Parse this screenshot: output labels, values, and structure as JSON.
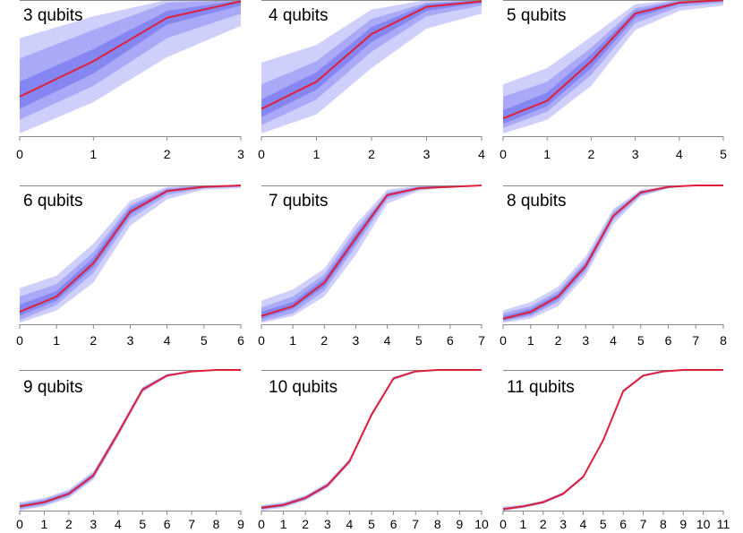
{
  "colors": {
    "band_outer": "#cfcffc",
    "band_mid": "#a9a9f7",
    "band_inner": "#8686f2",
    "median": "#dd1f3a",
    "axis": "#888888",
    "text": "#000000"
  },
  "chart_data": [
    {
      "type": "line",
      "title": "3 qubits",
      "xlabel": "",
      "ylabel": "",
      "x": [
        0,
        1,
        2,
        3
      ],
      "xlim": [
        0,
        3
      ],
      "ylim": [
        0,
        1
      ],
      "grid": false,
      "legend": "none",
      "series": [
        {
          "name": "median",
          "values": [
            0.29,
            0.55,
            0.87,
            0.99
          ]
        }
      ],
      "bands": [
        {
          "name": "outer",
          "low": [
            0.02,
            0.25,
            0.58,
            0.81
          ],
          "high": [
            0.72,
            0.88,
            1.0,
            1.0
          ]
        },
        {
          "name": "middle",
          "low": [
            0.12,
            0.37,
            0.72,
            0.9
          ],
          "high": [
            0.57,
            0.78,
            0.98,
            1.0
          ]
        },
        {
          "name": "inner",
          "low": [
            0.2,
            0.46,
            0.82,
            0.96
          ],
          "high": [
            0.4,
            0.64,
            0.92,
            1.0
          ]
        }
      ]
    },
    {
      "type": "line",
      "title": "4 qubits",
      "xlabel": "",
      "ylabel": "",
      "x": [
        0,
        1,
        2,
        3,
        4
      ],
      "xlim": [
        0,
        4
      ],
      "ylim": [
        0,
        1
      ],
      "grid": false,
      "legend": "none",
      "series": [
        {
          "name": "median",
          "values": [
            0.2,
            0.4,
            0.75,
            0.95,
            0.99
          ]
        }
      ],
      "bands": [
        {
          "name": "outer",
          "low": [
            0.02,
            0.16,
            0.5,
            0.79,
            0.9
          ],
          "high": [
            0.54,
            0.67,
            0.93,
            1.0,
            1.0
          ]
        },
        {
          "name": "middle",
          "low": [
            0.08,
            0.27,
            0.62,
            0.88,
            0.96
          ],
          "high": [
            0.38,
            0.55,
            0.86,
            0.98,
            1.0
          ]
        },
        {
          "name": "inner",
          "low": [
            0.14,
            0.34,
            0.69,
            0.92,
            0.98
          ],
          "high": [
            0.27,
            0.47,
            0.8,
            0.97,
            1.0
          ]
        }
      ]
    },
    {
      "type": "line",
      "title": "5 qubits",
      "xlabel": "",
      "ylabel": "",
      "x": [
        0,
        1,
        2,
        3,
        4,
        5
      ],
      "xlim": [
        0,
        5
      ],
      "ylim": [
        0,
        1
      ],
      "grid": false,
      "legend": "none",
      "series": [
        {
          "name": "median",
          "values": [
            0.13,
            0.26,
            0.55,
            0.9,
            0.98,
            1.0
          ]
        }
      ],
      "bands": [
        {
          "name": "outer",
          "low": [
            0.02,
            0.12,
            0.37,
            0.78,
            0.92,
            0.96
          ],
          "high": [
            0.38,
            0.5,
            0.73,
            0.97,
            1.0,
            1.0
          ]
        },
        {
          "name": "middle",
          "low": [
            0.06,
            0.18,
            0.45,
            0.83,
            0.95,
            0.98
          ],
          "high": [
            0.29,
            0.4,
            0.65,
            0.94,
            1.0,
            1.0
          ]
        },
        {
          "name": "inner",
          "low": [
            0.09,
            0.22,
            0.5,
            0.87,
            0.97,
            0.99
          ],
          "high": [
            0.19,
            0.32,
            0.6,
            0.92,
            0.99,
            1.0
          ]
        }
      ]
    },
    {
      "type": "line",
      "title": "6 qubits",
      "xlabel": "",
      "ylabel": "",
      "x": [
        0,
        1,
        2,
        3,
        4,
        5,
        6
      ],
      "xlim": [
        0,
        6
      ],
      "ylim": [
        0,
        1
      ],
      "grid": false,
      "legend": "none",
      "series": [
        {
          "name": "median",
          "values": [
            0.09,
            0.2,
            0.44,
            0.81,
            0.96,
            0.99,
            1.0
          ]
        }
      ],
      "bands": [
        {
          "name": "outer",
          "low": [
            0.01,
            0.1,
            0.3,
            0.71,
            0.9,
            0.97,
            0.98
          ],
          "high": [
            0.26,
            0.35,
            0.58,
            0.89,
            0.99,
            1.0,
            1.0
          ]
        },
        {
          "name": "middle",
          "low": [
            0.03,
            0.14,
            0.37,
            0.76,
            0.93,
            0.98,
            0.99
          ],
          "high": [
            0.2,
            0.29,
            0.52,
            0.86,
            0.98,
            1.0,
            1.0
          ]
        },
        {
          "name": "inner",
          "low": [
            0.06,
            0.17,
            0.41,
            0.79,
            0.95,
            0.99,
            1.0
          ],
          "high": [
            0.14,
            0.24,
            0.48,
            0.84,
            0.97,
            1.0,
            1.0
          ]
        }
      ]
    },
    {
      "type": "line",
      "title": "7 qubits",
      "xlabel": "",
      "ylabel": "",
      "x": [
        0,
        1,
        2,
        3,
        4,
        5,
        6,
        7
      ],
      "xlim": [
        0,
        7
      ],
      "ylim": [
        0,
        1
      ],
      "grid": false,
      "legend": "none",
      "series": [
        {
          "name": "median",
          "values": [
            0.06,
            0.13,
            0.3,
            0.62,
            0.93,
            0.98,
            0.99,
            1.0
          ]
        }
      ],
      "bands": [
        {
          "name": "outer",
          "low": [
            0.01,
            0.06,
            0.2,
            0.5,
            0.87,
            0.96,
            0.99,
            1.0
          ],
          "high": [
            0.17,
            0.25,
            0.4,
            0.72,
            0.97,
            1.0,
            1.0,
            1.0
          ]
        },
        {
          "name": "middle",
          "low": [
            0.02,
            0.08,
            0.24,
            0.56,
            0.9,
            0.97,
            0.99,
            1.0
          ],
          "high": [
            0.12,
            0.2,
            0.36,
            0.68,
            0.95,
            0.99,
            1.0,
            1.0
          ]
        },
        {
          "name": "inner",
          "low": [
            0.04,
            0.11,
            0.27,
            0.59,
            0.92,
            0.98,
            0.99,
            1.0
          ],
          "high": [
            0.09,
            0.16,
            0.33,
            0.65,
            0.94,
            0.99,
            1.0,
            1.0
          ]
        }
      ]
    },
    {
      "type": "line",
      "title": "8 qubits",
      "xlabel": "",
      "ylabel": "",
      "x": [
        0,
        1,
        2,
        3,
        4,
        5,
        6,
        7,
        8
      ],
      "xlim": [
        0,
        8
      ],
      "ylim": [
        0,
        1
      ],
      "grid": false,
      "legend": "none",
      "series": [
        {
          "name": "median",
          "values": [
            0.04,
            0.09,
            0.2,
            0.42,
            0.78,
            0.95,
            0.99,
            1.0,
            1.0
          ]
        }
      ],
      "bands": [
        {
          "name": "outer",
          "low": [
            0.01,
            0.04,
            0.13,
            0.35,
            0.72,
            0.92,
            0.98,
            1.0,
            1.0
          ],
          "high": [
            0.1,
            0.16,
            0.27,
            0.49,
            0.83,
            0.97,
            1.0,
            1.0,
            1.0
          ]
        },
        {
          "name": "middle",
          "low": [
            0.02,
            0.06,
            0.16,
            0.38,
            0.75,
            0.93,
            0.98,
            1.0,
            1.0
          ],
          "high": [
            0.08,
            0.13,
            0.24,
            0.46,
            0.81,
            0.96,
            0.99,
            1.0,
            1.0
          ]
        },
        {
          "name": "inner",
          "low": [
            0.03,
            0.07,
            0.18,
            0.4,
            0.77,
            0.94,
            0.99,
            1.0,
            1.0
          ],
          "high": [
            0.06,
            0.11,
            0.22,
            0.44,
            0.79,
            0.96,
            0.99,
            1.0,
            1.0
          ]
        }
      ]
    },
    {
      "type": "line",
      "title": "9 qubits",
      "xlabel": "",
      "ylabel": "",
      "x": [
        0,
        1,
        2,
        3,
        4,
        5,
        6,
        7,
        8,
        9
      ],
      "xlim": [
        0,
        9
      ],
      "ylim": [
        0,
        1
      ],
      "grid": false,
      "legend": "none",
      "series": [
        {
          "name": "median",
          "values": [
            0.03,
            0.06,
            0.12,
            0.25,
            0.55,
            0.86,
            0.96,
            0.99,
            1.0,
            1.0
          ]
        }
      ],
      "bands": [
        {
          "name": "outer",
          "low": [
            0.0,
            0.03,
            0.09,
            0.22,
            0.52,
            0.84,
            0.95,
            0.99,
            1.0,
            1.0
          ],
          "high": [
            0.06,
            0.09,
            0.15,
            0.28,
            0.57,
            0.88,
            0.97,
            1.0,
            1.0,
            1.0
          ]
        },
        {
          "name": "middle",
          "low": [
            0.01,
            0.04,
            0.1,
            0.23,
            0.53,
            0.85,
            0.96,
            0.99,
            1.0,
            1.0
          ],
          "high": [
            0.05,
            0.08,
            0.14,
            0.27,
            0.56,
            0.87,
            0.97,
            0.99,
            1.0,
            1.0
          ]
        },
        {
          "name": "inner",
          "low": [
            0.02,
            0.05,
            0.11,
            0.24,
            0.54,
            0.85,
            0.96,
            0.99,
            1.0,
            1.0
          ],
          "high": [
            0.04,
            0.07,
            0.13,
            0.26,
            0.56,
            0.87,
            0.97,
            0.99,
            1.0,
            1.0
          ]
        }
      ]
    },
    {
      "type": "line",
      "title": "10 qubits",
      "xlabel": "",
      "ylabel": "",
      "x": [
        0,
        1,
        2,
        3,
        4,
        5,
        6,
        7,
        8,
        9,
        10
      ],
      "xlim": [
        0,
        10
      ],
      "ylim": [
        0,
        1
      ],
      "grid": false,
      "legend": "none",
      "series": [
        {
          "name": "median",
          "values": [
            0.02,
            0.04,
            0.09,
            0.18,
            0.35,
            0.68,
            0.94,
            0.99,
            1.0,
            1.0,
            1.0
          ]
        }
      ],
      "bands": [
        {
          "name": "outer",
          "low": [
            0.0,
            0.02,
            0.07,
            0.16,
            0.33,
            0.67,
            0.93,
            0.98,
            1.0,
            1.0,
            1.0
          ],
          "high": [
            0.04,
            0.06,
            0.11,
            0.2,
            0.37,
            0.7,
            0.95,
            1.0,
            1.0,
            1.0,
            1.0
          ]
        },
        {
          "name": "middle",
          "low": [
            0.01,
            0.03,
            0.08,
            0.17,
            0.34,
            0.67,
            0.93,
            0.99,
            1.0,
            1.0,
            1.0
          ],
          "high": [
            0.03,
            0.05,
            0.1,
            0.19,
            0.36,
            0.69,
            0.95,
            0.99,
            1.0,
            1.0,
            1.0
          ]
        },
        {
          "name": "inner",
          "low": [
            0.01,
            0.03,
            0.08,
            0.17,
            0.34,
            0.68,
            0.94,
            0.99,
            1.0,
            1.0,
            1.0
          ],
          "high": [
            0.03,
            0.05,
            0.1,
            0.19,
            0.36,
            0.69,
            0.94,
            0.99,
            1.0,
            1.0,
            1.0
          ]
        }
      ]
    },
    {
      "type": "line",
      "title": "11 qubits",
      "xlabel": "",
      "ylabel": "",
      "x": [
        0,
        1,
        2,
        3,
        4,
        5,
        6,
        7,
        8,
        9,
        10,
        11
      ],
      "xlim": [
        0,
        11
      ],
      "ylim": [
        0,
        1
      ],
      "grid": false,
      "legend": "none",
      "series": [
        {
          "name": "median",
          "values": [
            0.01,
            0.03,
            0.06,
            0.12,
            0.24,
            0.5,
            0.85,
            0.96,
            0.99,
            1.0,
            1.0,
            1.0
          ]
        }
      ],
      "bands": [
        {
          "name": "outer",
          "low": [
            0.0,
            0.02,
            0.05,
            0.11,
            0.23,
            0.49,
            0.84,
            0.95,
            0.99,
            1.0,
            1.0,
            1.0
          ],
          "high": [
            0.03,
            0.04,
            0.07,
            0.13,
            0.25,
            0.51,
            0.86,
            0.97,
            1.0,
            1.0,
            1.0,
            1.0
          ]
        },
        {
          "name": "middle",
          "low": [
            0.0,
            0.02,
            0.05,
            0.11,
            0.23,
            0.49,
            0.84,
            0.96,
            0.99,
            1.0,
            1.0,
            1.0
          ],
          "high": [
            0.02,
            0.04,
            0.07,
            0.13,
            0.25,
            0.51,
            0.86,
            0.96,
            0.99,
            1.0,
            1.0,
            1.0
          ]
        },
        {
          "name": "inner",
          "low": [
            0.01,
            0.03,
            0.06,
            0.12,
            0.24,
            0.5,
            0.85,
            0.96,
            0.99,
            1.0,
            1.0,
            1.0
          ],
          "high": [
            0.02,
            0.03,
            0.06,
            0.12,
            0.24,
            0.5,
            0.85,
            0.96,
            0.99,
            1.0,
            1.0,
            1.0
          ]
        }
      ]
    }
  ]
}
